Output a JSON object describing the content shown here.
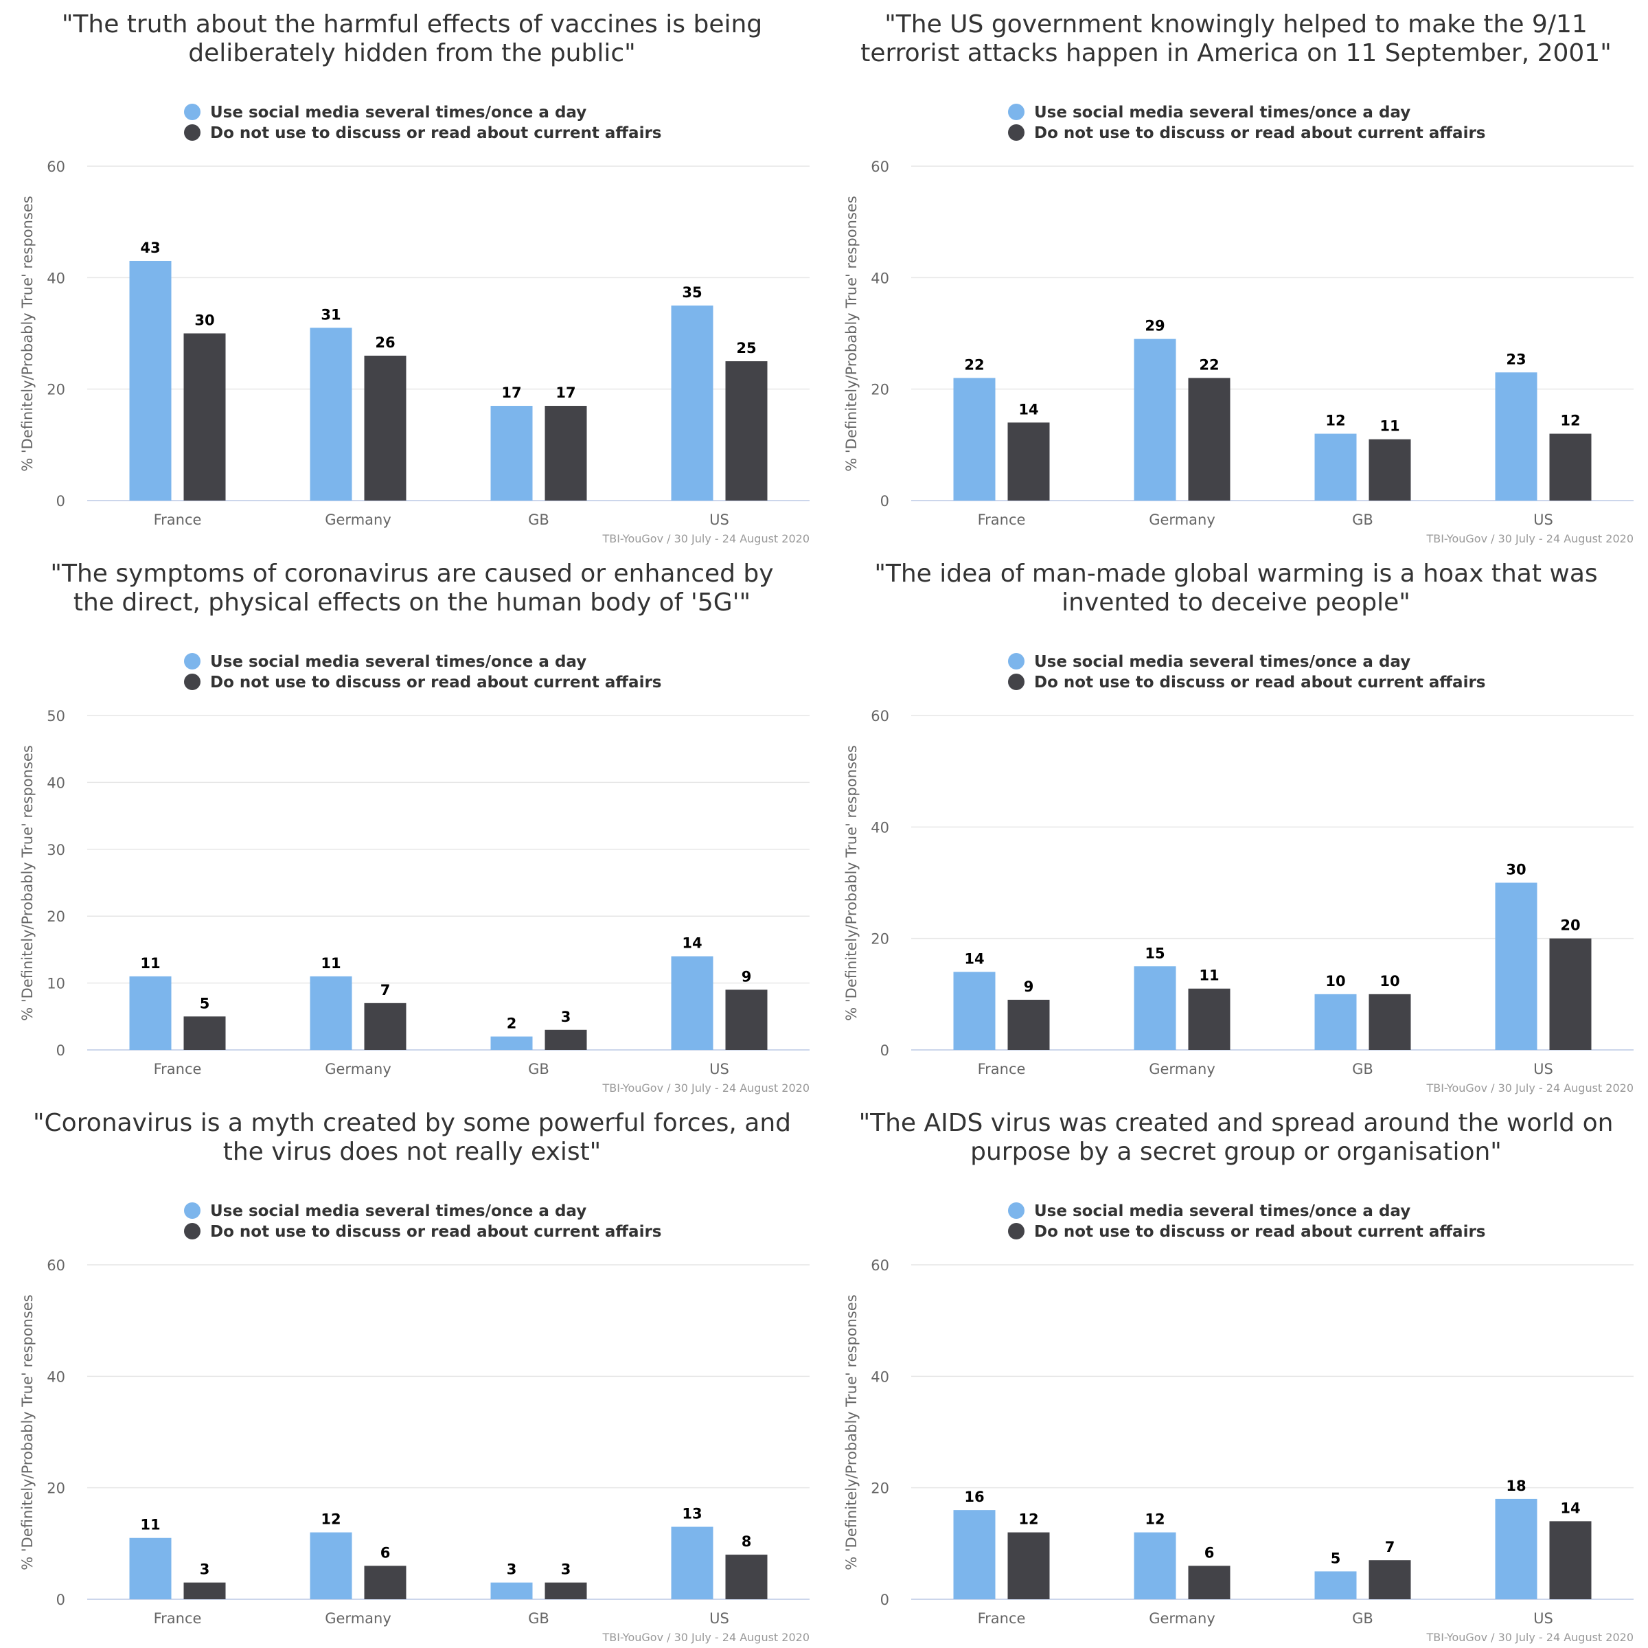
{
  "colors": {
    "series0": "#7cb5ec",
    "series1": "#434348",
    "grid": "#e6e6e6",
    "axis": "#ccd6eb",
    "text": "#333333"
  },
  "chart_data": [
    {
      "type": "bar",
      "title": [
        "\"The truth about the harmful effects of vaccines is being",
        "deliberately hidden from the public\""
      ],
      "categories": [
        "France",
        "Germany",
        "GB",
        "US"
      ],
      "series": [
        {
          "name": "Use social media several times/once a day",
          "values": [
            43,
            31,
            17,
            35
          ]
        },
        {
          "name": "Do not use to discuss or read about current affairs",
          "values": [
            30,
            26,
            17,
            25
          ]
        }
      ],
      "ylabel": "% 'Definitely/Probably True' responses",
      "ylim": [
        0,
        60
      ],
      "yticks": [
        0,
        20,
        40,
        60
      ],
      "source": "TBI-YouGov / 30 July - 24 August 2020",
      "legend": "top",
      "grid": true
    },
    {
      "type": "bar",
      "title": [
        "\"The US government knowingly helped to make the 9/11",
        "terrorist attacks happen in America on 11 September, 2001\""
      ],
      "categories": [
        "France",
        "Germany",
        "GB",
        "US"
      ],
      "series": [
        {
          "name": "Use social media several times/once a day",
          "values": [
            22,
            29,
            12,
            23
          ]
        },
        {
          "name": "Do not use to discuss or read about current affairs",
          "values": [
            14,
            22,
            11,
            12
          ]
        }
      ],
      "ylabel": "% 'Definitely/Probably True' responses",
      "ylim": [
        0,
        60
      ],
      "yticks": [
        0,
        20,
        40,
        60
      ],
      "source": "TBI-YouGov / 30 July - 24 August 2020",
      "legend": "top",
      "grid": true
    },
    {
      "type": "bar",
      "title": [
        "\"The symptoms of coronavirus are caused or enhanced by",
        "the direct, physical effects on the human body of '5G'\""
      ],
      "categories": [
        "France",
        "Germany",
        "GB",
        "US"
      ],
      "series": [
        {
          "name": "Use social media several times/once a day",
          "values": [
            11,
            11,
            2,
            14
          ]
        },
        {
          "name": "Do not use to discuss or read about current affairs",
          "values": [
            5,
            7,
            3,
            9
          ]
        }
      ],
      "ylabel": "% 'Definitely/Probably True' responses",
      "ylim": [
        0,
        50
      ],
      "yticks": [
        0,
        10,
        20,
        30,
        40,
        50
      ],
      "source": "TBI-YouGov / 30 July - 24 August 2020",
      "legend": "top",
      "grid": true
    },
    {
      "type": "bar",
      "title": [
        "\"The idea of man-made global warming is a hoax that was",
        "invented to deceive people\""
      ],
      "categories": [
        "France",
        "Germany",
        "GB",
        "US"
      ],
      "series": [
        {
          "name": "Use social media several times/once a day",
          "values": [
            14,
            15,
            10,
            30
          ]
        },
        {
          "name": "Do not use to discuss or read about current affairs",
          "values": [
            9,
            11,
            10,
            20
          ]
        }
      ],
      "ylabel": "% 'Definitely/Probably True' responses",
      "ylim": [
        0,
        60
      ],
      "yticks": [
        0,
        20,
        40,
        60
      ],
      "source": "TBI-YouGov / 30 July - 24 August 2020",
      "legend": "top",
      "grid": true
    },
    {
      "type": "bar",
      "title": [
        "\"Coronavirus is a myth created by some powerful forces, and",
        "the virus does not really exist\""
      ],
      "categories": [
        "France",
        "Germany",
        "GB",
        "US"
      ],
      "series": [
        {
          "name": "Use social media several times/once a day",
          "values": [
            11,
            12,
            3,
            13
          ]
        },
        {
          "name": "Do not use to discuss or read about current affairs",
          "values": [
            3,
            6,
            3,
            8
          ]
        }
      ],
      "ylabel": "% 'Definitely/Probably True' responses",
      "ylim": [
        0,
        60
      ],
      "yticks": [
        0,
        20,
        40,
        60
      ],
      "source": "TBI-YouGov / 30 July - 24 August 2020",
      "legend": "top",
      "grid": true
    },
    {
      "type": "bar",
      "title": [
        "\"The AIDS virus was created and spread around the world on",
        "purpose by a secret group or organisation\""
      ],
      "categories": [
        "France",
        "Germany",
        "GB",
        "US"
      ],
      "series": [
        {
          "name": "Use social media several times/once a day",
          "values": [
            16,
            12,
            5,
            18
          ]
        },
        {
          "name": "Do not use to discuss or read about current affairs",
          "values": [
            12,
            6,
            7,
            14
          ]
        }
      ],
      "ylabel": "% 'Definitely/Probably True' responses",
      "ylim": [
        0,
        60
      ],
      "yticks": [
        0,
        20,
        40,
        60
      ],
      "source": "TBI-YouGov / 30 July - 24 August 2020",
      "legend": "top",
      "grid": true
    }
  ]
}
